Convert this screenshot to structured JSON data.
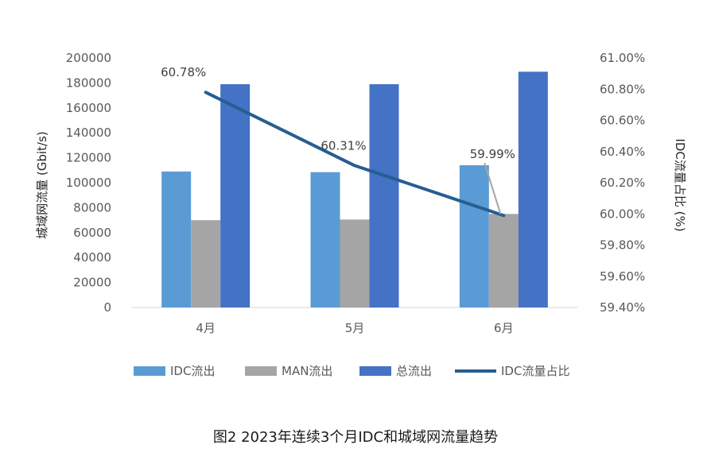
{
  "chart_data": {
    "type": "bar+line",
    "categories": [
      "4月",
      "5月",
      "6月"
    ],
    "y_left": {
      "label": "城域网流量 (Gbit/s)",
      "range": [
        0,
        200000
      ],
      "ticks": [
        "0",
        "20000",
        "40000",
        "60000",
        "80000",
        "100000",
        "120000",
        "140000",
        "160000",
        "180000",
        "200000"
      ]
    },
    "y_right": {
      "label": "IDC流量占比 (%)",
      "range": [
        59.4,
        61.0
      ],
      "ticks": [
        "59.40%",
        "59.60%",
        "59.80%",
        "60.00%",
        "60.20%",
        "60.40%",
        "60.60%",
        "60.80%",
        "61.00%"
      ]
    },
    "series": [
      {
        "name": "IDC流出",
        "type": "bar",
        "axis": "left",
        "color": "#5b9bd5",
        "values": [
          109000,
          108500,
          114000
        ]
      },
      {
        "name": "MAN流出",
        "type": "bar",
        "axis": "left",
        "color": "#a5a5a5",
        "values": [
          70000,
          70500,
          75000
        ]
      },
      {
        "name": "总流出",
        "type": "bar",
        "axis": "left",
        "color": "#4472c4",
        "values": [
          179000,
          179000,
          189000
        ]
      },
      {
        "name": "IDC流量占比",
        "type": "line",
        "axis": "right",
        "color": "#255e91",
        "values": [
          60.78,
          60.31,
          59.99
        ],
        "labels": [
          "60.78%",
          "60.31%",
          "59.99%"
        ]
      }
    ],
    "legend_position": "bottom",
    "grid": false
  },
  "caption": "图2 2023年连续3个月IDC和城域网流量趋势"
}
